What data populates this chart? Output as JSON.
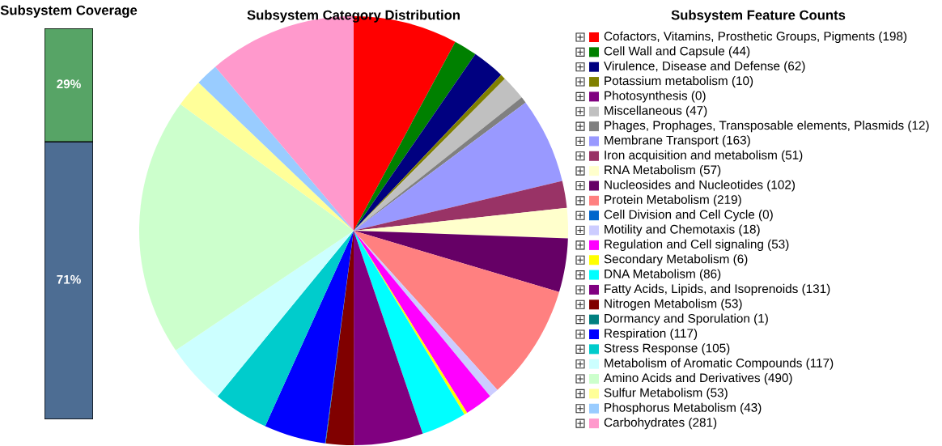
{
  "chart_data": [
    {
      "type": "bar",
      "title": "Subsystem Coverage",
      "stacked": true,
      "categories": [
        null
      ],
      "series": [
        {
          "color": "#4d6d93",
          "values": [
            71
          ],
          "value_labels": [
            "71%"
          ]
        },
        {
          "color": "#57a466",
          "values": [
            29
          ],
          "value_labels": [
            "29%"
          ]
        }
      ]
    },
    {
      "type": "pie",
      "title": "Subsystem Category Distribution",
      "legend_title": "Subsystem Feature Counts",
      "legend": "right",
      "categories": [
        "Cofactors, Vitamins, Prosthetic Groups, Pigments (198)",
        "Cell Wall and Capsule (44)",
        "Virulence, Disease and Defense (62)",
        "Potassium metabolism (10)",
        "Photosynthesis (0)",
        "Miscellaneous (47)",
        "Phages, Prophages, Transposable elements, Plasmids (12)",
        "Membrane Transport (163)",
        "Iron acquisition and metabolism (51)",
        "RNA Metabolism (57)",
        "Nucleosides and Nucleotides (102)",
        "Protein Metabolism (219)",
        "Cell Division and Cell Cycle (0)",
        "Motility and Chemotaxis (18)",
        "Regulation and Cell signaling (53)",
        "Secondary Metabolism (6)",
        "DNA Metabolism (86)",
        "Fatty Acids, Lipids, and Isoprenoids (131)",
        "Nitrogen Metabolism (53)",
        "Dormancy and Sporulation (1)",
        "Respiration (117)",
        "Stress Response (105)",
        "Metabolism of Aromatic Compounds (117)",
        "Amino Acids and Derivatives (490)",
        "Sulfur Metabolism (53)",
        "Phosphorus Metabolism (43)",
        "Carbohydrates (281)"
      ],
      "values": [
        198,
        44,
        62,
        10,
        0,
        47,
        12,
        163,
        51,
        57,
        102,
        219,
        0,
        18,
        53,
        6,
        86,
        131,
        53,
        1,
        117,
        105,
        117,
        490,
        53,
        43,
        281
      ],
      "colors": [
        "#ff0000",
        "#008000",
        "#000080",
        "#808000",
        "#800080",
        "#c0c0c0",
        "#808080",
        "#9999ff",
        "#993366",
        "#ffffcc",
        "#660066",
        "#ff8080",
        "#0066cc",
        "#ccccff",
        "#ff00ff",
        "#ffff00",
        "#00ffff",
        "#800080",
        "#800000",
        "#008080",
        "#0000ff",
        "#00cccc",
        "#ccffff",
        "#ccffcc",
        "#ffff99",
        "#99ccff",
        "#ff99cc"
      ]
    }
  ]
}
